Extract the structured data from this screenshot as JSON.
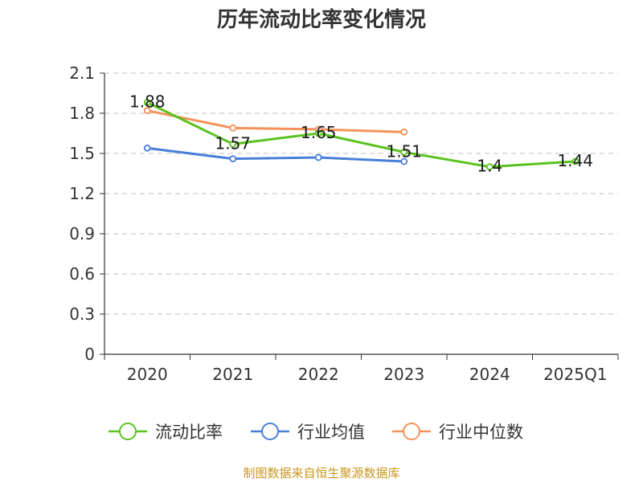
{
  "chart_data": {
    "type": "line",
    "title": "历年流动比率变化情况",
    "categories": [
      "2020",
      "2021",
      "2022",
      "2023",
      "2024",
      "2025Q1"
    ],
    "y_ticks": [
      "0",
      "0.3",
      "0.6",
      "0.9",
      "1.2",
      "1.5",
      "1.8",
      "2.1"
    ],
    "ylim": [
      0,
      2.1
    ],
    "grid": true,
    "legend_position": "bottom",
    "series": [
      {
        "name": "流动比率",
        "color": "#5ac21e",
        "values": [
          1.88,
          1.57,
          1.65,
          1.51,
          1.4,
          1.44
        ],
        "labels": [
          "1.88",
          "1.57",
          "1.65",
          "1.51",
          "1.4",
          "1.44"
        ]
      },
      {
        "name": "行业均值",
        "color": "#4a7fd8",
        "values": [
          1.54,
          1.46,
          1.47,
          1.44,
          null,
          null
        ]
      },
      {
        "name": "行业中位数",
        "color": "#f5925a",
        "values": [
          1.82,
          1.69,
          1.68,
          1.66,
          null,
          null
        ]
      }
    ],
    "source": "制图数据来自恒生聚源数据库"
  }
}
